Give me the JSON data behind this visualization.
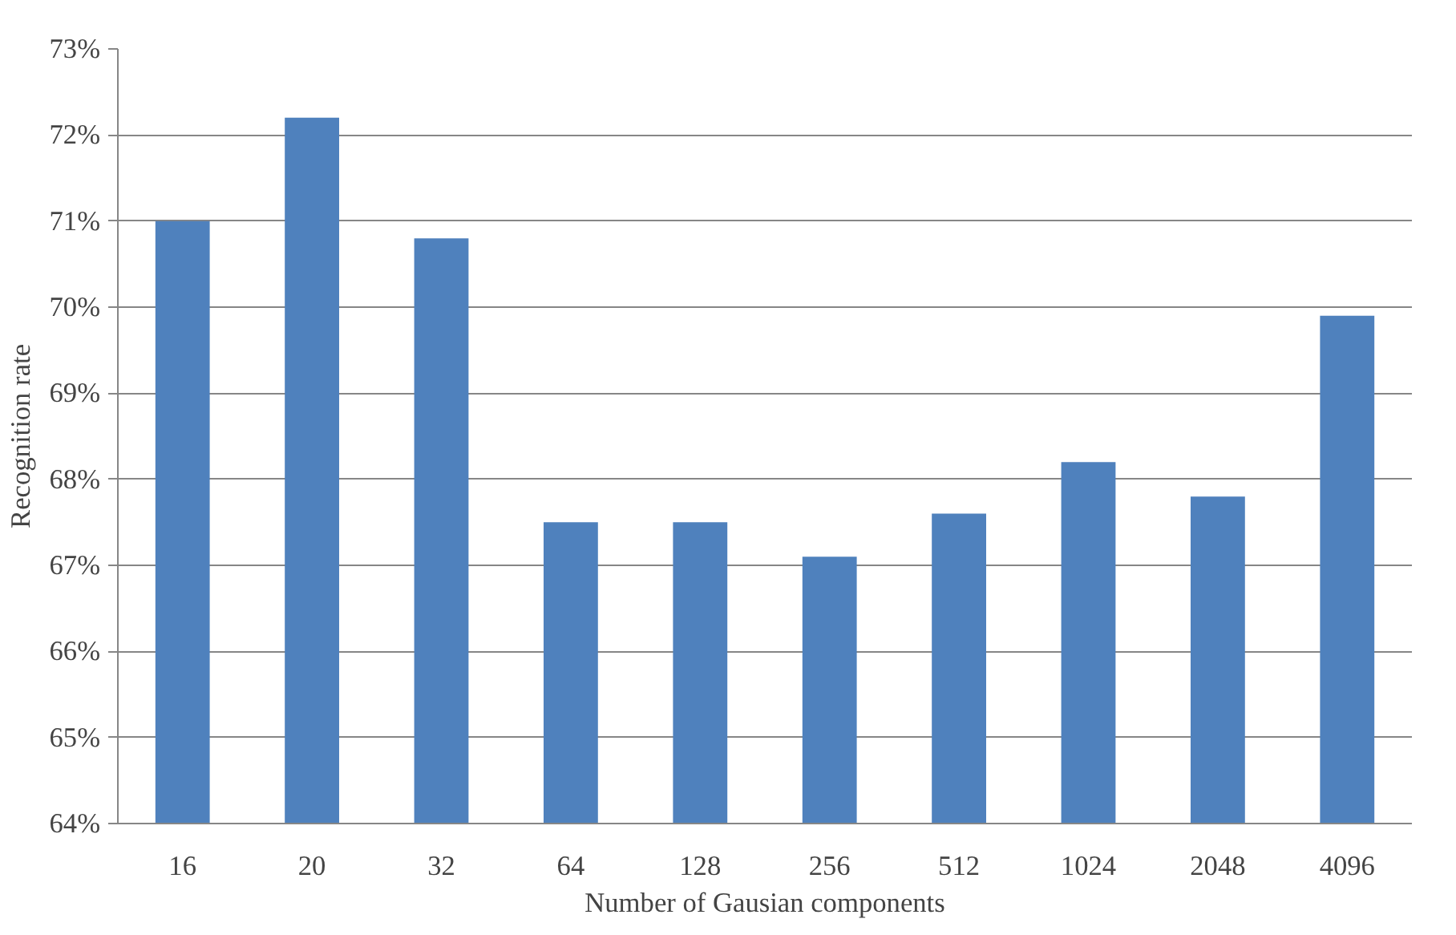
{
  "chart_data": {
    "type": "bar",
    "xlabel": "Number of Gausian components",
    "ylabel": "Recognition rate",
    "categories": [
      "16",
      "20",
      "32",
      "64",
      "128",
      "256",
      "512",
      "1024",
      "2048",
      "4096"
    ],
    "values": [
      71.0,
      72.2,
      70.8,
      67.5,
      67.5,
      67.1,
      67.6,
      68.2,
      67.8,
      69.9
    ],
    "color": "#4f81bd",
    "ylim": [
      64,
      73
    ],
    "yticks": [
      {
        "value": 64,
        "label": "64%"
      },
      {
        "value": 65,
        "label": "65%"
      },
      {
        "value": 66,
        "label": "66%"
      },
      {
        "value": 67,
        "label": "67%"
      },
      {
        "value": 68,
        "label": "68%"
      },
      {
        "value": 69,
        "label": "69%"
      },
      {
        "value": 70,
        "label": "70%"
      },
      {
        "value": 71,
        "label": "71%"
      },
      {
        "value": 72,
        "label": "72%"
      },
      {
        "value": 73,
        "label": "73%"
      }
    ],
    "grid": "y"
  }
}
